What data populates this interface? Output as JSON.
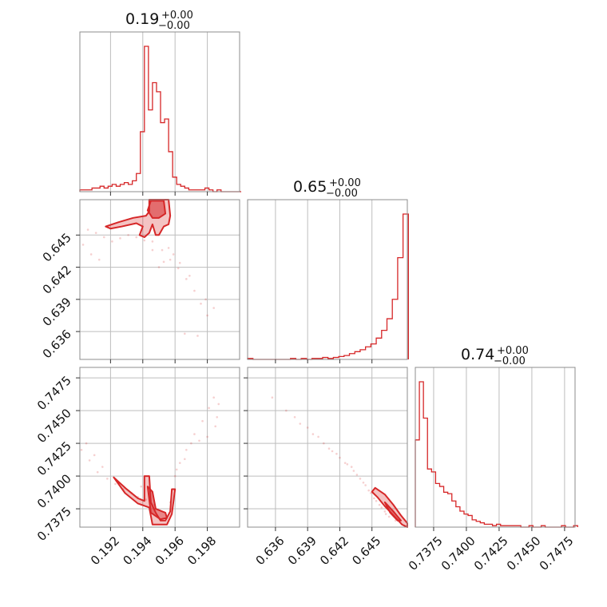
{
  "accent_color": "#d62728",
  "grid_color": "#bdbdbd",
  "frame_color": "#8c8c8c",
  "chart_data": {
    "type": "corner",
    "parameters": [
      {
        "title_main": "0.19",
        "title_plus": "+0.00",
        "title_minus": "−0.00",
        "range": [
          0.1901,
          0.2
        ]
      },
      {
        "title_main": "0.65",
        "title_plus": "+0.00",
        "title_minus": "−0.00",
        "range": [
          0.6334,
          0.6483
        ]
      },
      {
        "title_main": "0.74",
        "title_plus": "+0.00",
        "title_minus": "−0.00",
        "range": [
          0.7361,
          0.7483
        ]
      }
    ],
    "ticks": [
      {
        "values": [
          0.192,
          0.194,
          0.196,
          0.198
        ],
        "labels": [
          "0.192",
          "0.194",
          "0.196",
          "0.198"
        ]
      },
      {
        "values": [
          0.636,
          0.639,
          0.642,
          0.645
        ],
        "labels": [
          "0.636",
          "0.639",
          "0.642",
          "0.645"
        ]
      },
      {
        "values": [
          0.7375,
          0.74,
          0.7425,
          0.745,
          0.7475
        ],
        "labels": [
          "0.7375",
          "0.7400",
          "0.7425",
          "0.7450",
          "0.7475"
        ]
      }
    ],
    "histograms": [
      {
        "bins": [
          0.1901,
          0.19035,
          0.1906,
          0.19085,
          0.1911,
          0.19135,
          0.1916,
          0.19185,
          0.1921,
          0.19235,
          0.1926,
          0.19285,
          0.1931,
          0.19335,
          0.1936,
          0.19385,
          0.1941,
          0.19435,
          0.1946,
          0.19485,
          0.1951,
          0.19535,
          0.1956,
          0.19585,
          0.1961,
          0.19635,
          0.1966,
          0.19685,
          0.1971,
          0.19735,
          0.1976,
          0.19785,
          0.1981,
          0.19835,
          0.1986,
          0.19885,
          0.1991,
          0.19935,
          0.1996,
          0.19985,
          0.2001
        ],
        "counts": [
          1,
          1,
          1,
          2,
          2,
          3,
          2,
          3,
          4,
          3,
          4,
          5,
          4,
          6,
          10,
          33,
          80,
          45,
          60,
          55,
          38,
          40,
          22,
          8,
          4,
          3,
          2,
          1,
          1,
          1,
          1,
          2,
          1,
          0,
          1,
          0,
          0,
          0,
          0,
          0
        ]
      },
      {
        "bins": [
          0.6334,
          0.6339,
          0.6344,
          0.6349,
          0.6354,
          0.6359,
          0.6364,
          0.6369,
          0.6374,
          0.6379,
          0.6384,
          0.6389,
          0.6394,
          0.6399,
          0.6404,
          0.6409,
          0.6414,
          0.6419,
          0.6424,
          0.6429,
          0.6434,
          0.6439,
          0.6444,
          0.6449,
          0.6454,
          0.6459,
          0.6464,
          0.6469,
          0.6474,
          0.6479,
          0.6484
        ],
        "counts": [
          1,
          0,
          0,
          0,
          0,
          0,
          0,
          0,
          1,
          0,
          1,
          0,
          1,
          1,
          2,
          1,
          2,
          3,
          4,
          6,
          8,
          10,
          13,
          16,
          22,
          30,
          42,
          62,
          105,
          150
        ]
      },
      {
        "bins": [
          0.7361,
          0.73641,
          0.73672,
          0.73703,
          0.73734,
          0.73765,
          0.73796,
          0.73827,
          0.73858,
          0.73889,
          0.7392,
          0.73951,
          0.73982,
          0.74013,
          0.74044,
          0.74075,
          0.74106,
          0.74137,
          0.74168,
          0.74199,
          0.7423,
          0.74261,
          0.74292,
          0.74323,
          0.74354,
          0.74385,
          0.74416,
          0.74447,
          0.74478,
          0.74509,
          0.7454,
          0.74571,
          0.74602,
          0.74633,
          0.74664,
          0.74695,
          0.74726,
          0.74757,
          0.74788,
          0.74819,
          0.7485
        ],
        "counts": [
          60,
          100,
          75,
          40,
          38,
          30,
          28,
          24,
          23,
          18,
          14,
          11,
          9,
          8,
          5,
          4,
          3,
          2,
          2,
          1,
          2,
          1,
          1,
          1,
          1,
          1,
          0,
          0,
          1,
          0,
          0,
          1,
          0,
          0,
          0,
          0,
          1,
          0,
          0,
          1
        ]
      }
    ],
    "pair_points": {
      "p2_vs_p1": [
        [
          0.1906,
          0.6455
        ],
        [
          0.1911,
          0.6452
        ],
        [
          0.1916,
          0.6448
        ],
        [
          0.1921,
          0.6444
        ],
        [
          0.1926,
          0.6447
        ],
        [
          0.1931,
          0.645
        ],
        [
          0.1936,
          0.6448
        ],
        [
          0.1941,
          0.6445
        ],
        [
          0.1946,
          0.6444
        ],
        [
          0.1952,
          0.6436
        ],
        [
          0.1957,
          0.6427
        ],
        [
          0.1962,
          0.6419
        ],
        [
          0.1967,
          0.6409
        ],
        [
          0.1972,
          0.6398
        ],
        [
          0.1976,
          0.6386
        ],
        [
          0.198,
          0.6375
        ],
        [
          0.1974,
          0.6356
        ],
        [
          0.1966,
          0.6358
        ],
        [
          0.195,
          0.642
        ],
        [
          0.1946,
          0.6436
        ],
        [
          0.1908,
          0.6432
        ],
        [
          0.1913,
          0.6427
        ],
        [
          0.1903,
          0.6441
        ],
        [
          0.1956,
          0.6438
        ],
        [
          0.1959,
          0.6432
        ],
        [
          0.1963,
          0.6424
        ],
        [
          0.1953,
          0.6425
        ],
        [
          0.1969,
          0.6412
        ],
        [
          0.1979,
          0.639
        ],
        [
          0.1984,
          0.6382
        ]
      ],
      "p3_vs_p1": [
        [
          0.1902,
          0.742
        ],
        [
          0.1907,
          0.7412
        ],
        [
          0.1912,
          0.7403
        ],
        [
          0.1918,
          0.7398
        ],
        [
          0.1923,
          0.7394
        ],
        [
          0.1928,
          0.739
        ],
        [
          0.1933,
          0.7387
        ],
        [
          0.1937,
          0.7384
        ],
        [
          0.1942,
          0.7382
        ],
        [
          0.1905,
          0.7425
        ],
        [
          0.191,
          0.7416
        ],
        [
          0.1915,
          0.7407
        ],
        [
          0.196,
          0.74
        ],
        [
          0.1963,
          0.741
        ],
        [
          0.1967,
          0.742
        ],
        [
          0.1972,
          0.7432
        ],
        [
          0.1977,
          0.7442
        ],
        [
          0.1981,
          0.7452
        ],
        [
          0.1984,
          0.746
        ],
        [
          0.1987,
          0.7455
        ],
        [
          0.1986,
          0.7445
        ],
        [
          0.1975,
          0.7427
        ],
        [
          0.1966,
          0.7413
        ],
        [
          0.1961,
          0.7405
        ],
        [
          0.1985,
          0.7438
        ],
        [
          0.198,
          0.743
        ],
        [
          0.197,
          0.7425
        ],
        [
          0.1947,
          0.7378
        ],
        [
          0.1957,
          0.738
        ],
        [
          0.1939,
          0.7392
        ]
      ],
      "p3_vs_p2": [
        [
          0.6357,
          0.746
        ],
        [
          0.637,
          0.745
        ],
        [
          0.6383,
          0.744
        ],
        [
          0.6395,
          0.7432
        ],
        [
          0.6405,
          0.7425
        ],
        [
          0.6413,
          0.7419
        ],
        [
          0.642,
          0.7414
        ],
        [
          0.6427,
          0.7409
        ],
        [
          0.6433,
          0.7404
        ],
        [
          0.6439,
          0.7398
        ],
        [
          0.6444,
          0.7393
        ],
        [
          0.6449,
          0.7387
        ],
        [
          0.6454,
          0.7381
        ],
        [
          0.6459,
          0.7376
        ],
        [
          0.6463,
          0.7371
        ],
        [
          0.639,
          0.7437
        ],
        [
          0.64,
          0.743
        ],
        [
          0.641,
          0.7421
        ],
        [
          0.6417,
          0.7417
        ],
        [
          0.6425,
          0.741
        ],
        [
          0.6431,
          0.7407
        ],
        [
          0.6436,
          0.7401
        ],
        [
          0.6442,
          0.7395
        ],
        [
          0.6447,
          0.7389
        ],
        [
          0.6452,
          0.7383
        ],
        [
          0.6457,
          0.7378
        ],
        [
          0.6462,
          0.7373
        ],
        [
          0.6466,
          0.7369
        ],
        [
          0.6472,
          0.7366
        ],
        [
          0.6378,
          0.7445
        ]
      ]
    },
    "pair_contours": {
      "p2_vs_p1": [
        [
          [
            0.1917,
            0.6458
          ],
          [
            0.1925,
            0.6462
          ],
          [
            0.1934,
            0.6466
          ],
          [
            0.1942,
            0.6468
          ],
          [
            0.1944,
            0.6472
          ],
          [
            0.1944,
            0.6483
          ],
          [
            0.1956,
            0.6483
          ],
          [
            0.1957,
            0.6468
          ],
          [
            0.1956,
            0.646
          ],
          [
            0.1953,
            0.6458
          ],
          [
            0.195,
            0.645
          ],
          [
            0.1948,
            0.645
          ],
          [
            0.1946,
            0.646
          ],
          [
            0.1944,
            0.6452
          ],
          [
            0.1941,
            0.6448
          ],
          [
            0.1938,
            0.645
          ],
          [
            0.194,
            0.6458
          ],
          [
            0.1936,
            0.6461
          ],
          [
            0.1927,
            0.6458
          ],
          [
            0.192,
            0.6456
          ]
        ],
        [
          [
            0.1943,
            0.6473
          ],
          [
            0.1945,
            0.6482
          ],
          [
            0.1953,
            0.6482
          ],
          [
            0.1954,
            0.647
          ],
          [
            0.195,
            0.6466
          ],
          [
            0.1946,
            0.6466
          ]
        ]
      ],
      "p3_vs_p1": [
        [
          [
            0.1922,
            0.7399
          ],
          [
            0.193,
            0.739
          ],
          [
            0.1937,
            0.7383
          ],
          [
            0.1941,
            0.7381
          ],
          [
            0.1941,
            0.74
          ],
          [
            0.1944,
            0.74
          ],
          [
            0.1945,
            0.738
          ],
          [
            0.1948,
            0.7372
          ],
          [
            0.1951,
            0.7366
          ],
          [
            0.1954,
            0.7366
          ],
          [
            0.1957,
            0.7373
          ],
          [
            0.1958,
            0.739
          ],
          [
            0.196,
            0.739
          ],
          [
            0.1958,
            0.7371
          ],
          [
            0.1955,
            0.7363
          ],
          [
            0.1946,
            0.7363
          ],
          [
            0.1944,
            0.7376
          ],
          [
            0.1937,
            0.7379
          ],
          [
            0.1929,
            0.7387
          ]
        ],
        [
          [
            0.1943,
            0.7392
          ],
          [
            0.1945,
            0.7372
          ],
          [
            0.1951,
            0.7367
          ],
          [
            0.1955,
            0.7368
          ],
          [
            0.1954,
            0.7372
          ],
          [
            0.1948,
            0.7375
          ],
          [
            0.1946,
            0.7388
          ]
        ]
      ],
      "p3_vs_p2": [
        [
          [
            0.6453,
            0.7391
          ],
          [
            0.6462,
            0.7386
          ],
          [
            0.647,
            0.7378
          ],
          [
            0.6477,
            0.737
          ],
          [
            0.6483,
            0.7364
          ],
          [
            0.6483,
            0.7361
          ],
          [
            0.6478,
            0.7363
          ],
          [
            0.647,
            0.737
          ],
          [
            0.6462,
            0.7377
          ],
          [
            0.6455,
            0.7384
          ],
          [
            0.645,
            0.7388
          ]
        ],
        [
          [
            0.6462,
            0.738
          ],
          [
            0.647,
            0.7373
          ],
          [
            0.6477,
            0.7366
          ],
          [
            0.6474,
            0.7366
          ],
          [
            0.6467,
            0.7372
          ]
        ]
      ]
    }
  }
}
